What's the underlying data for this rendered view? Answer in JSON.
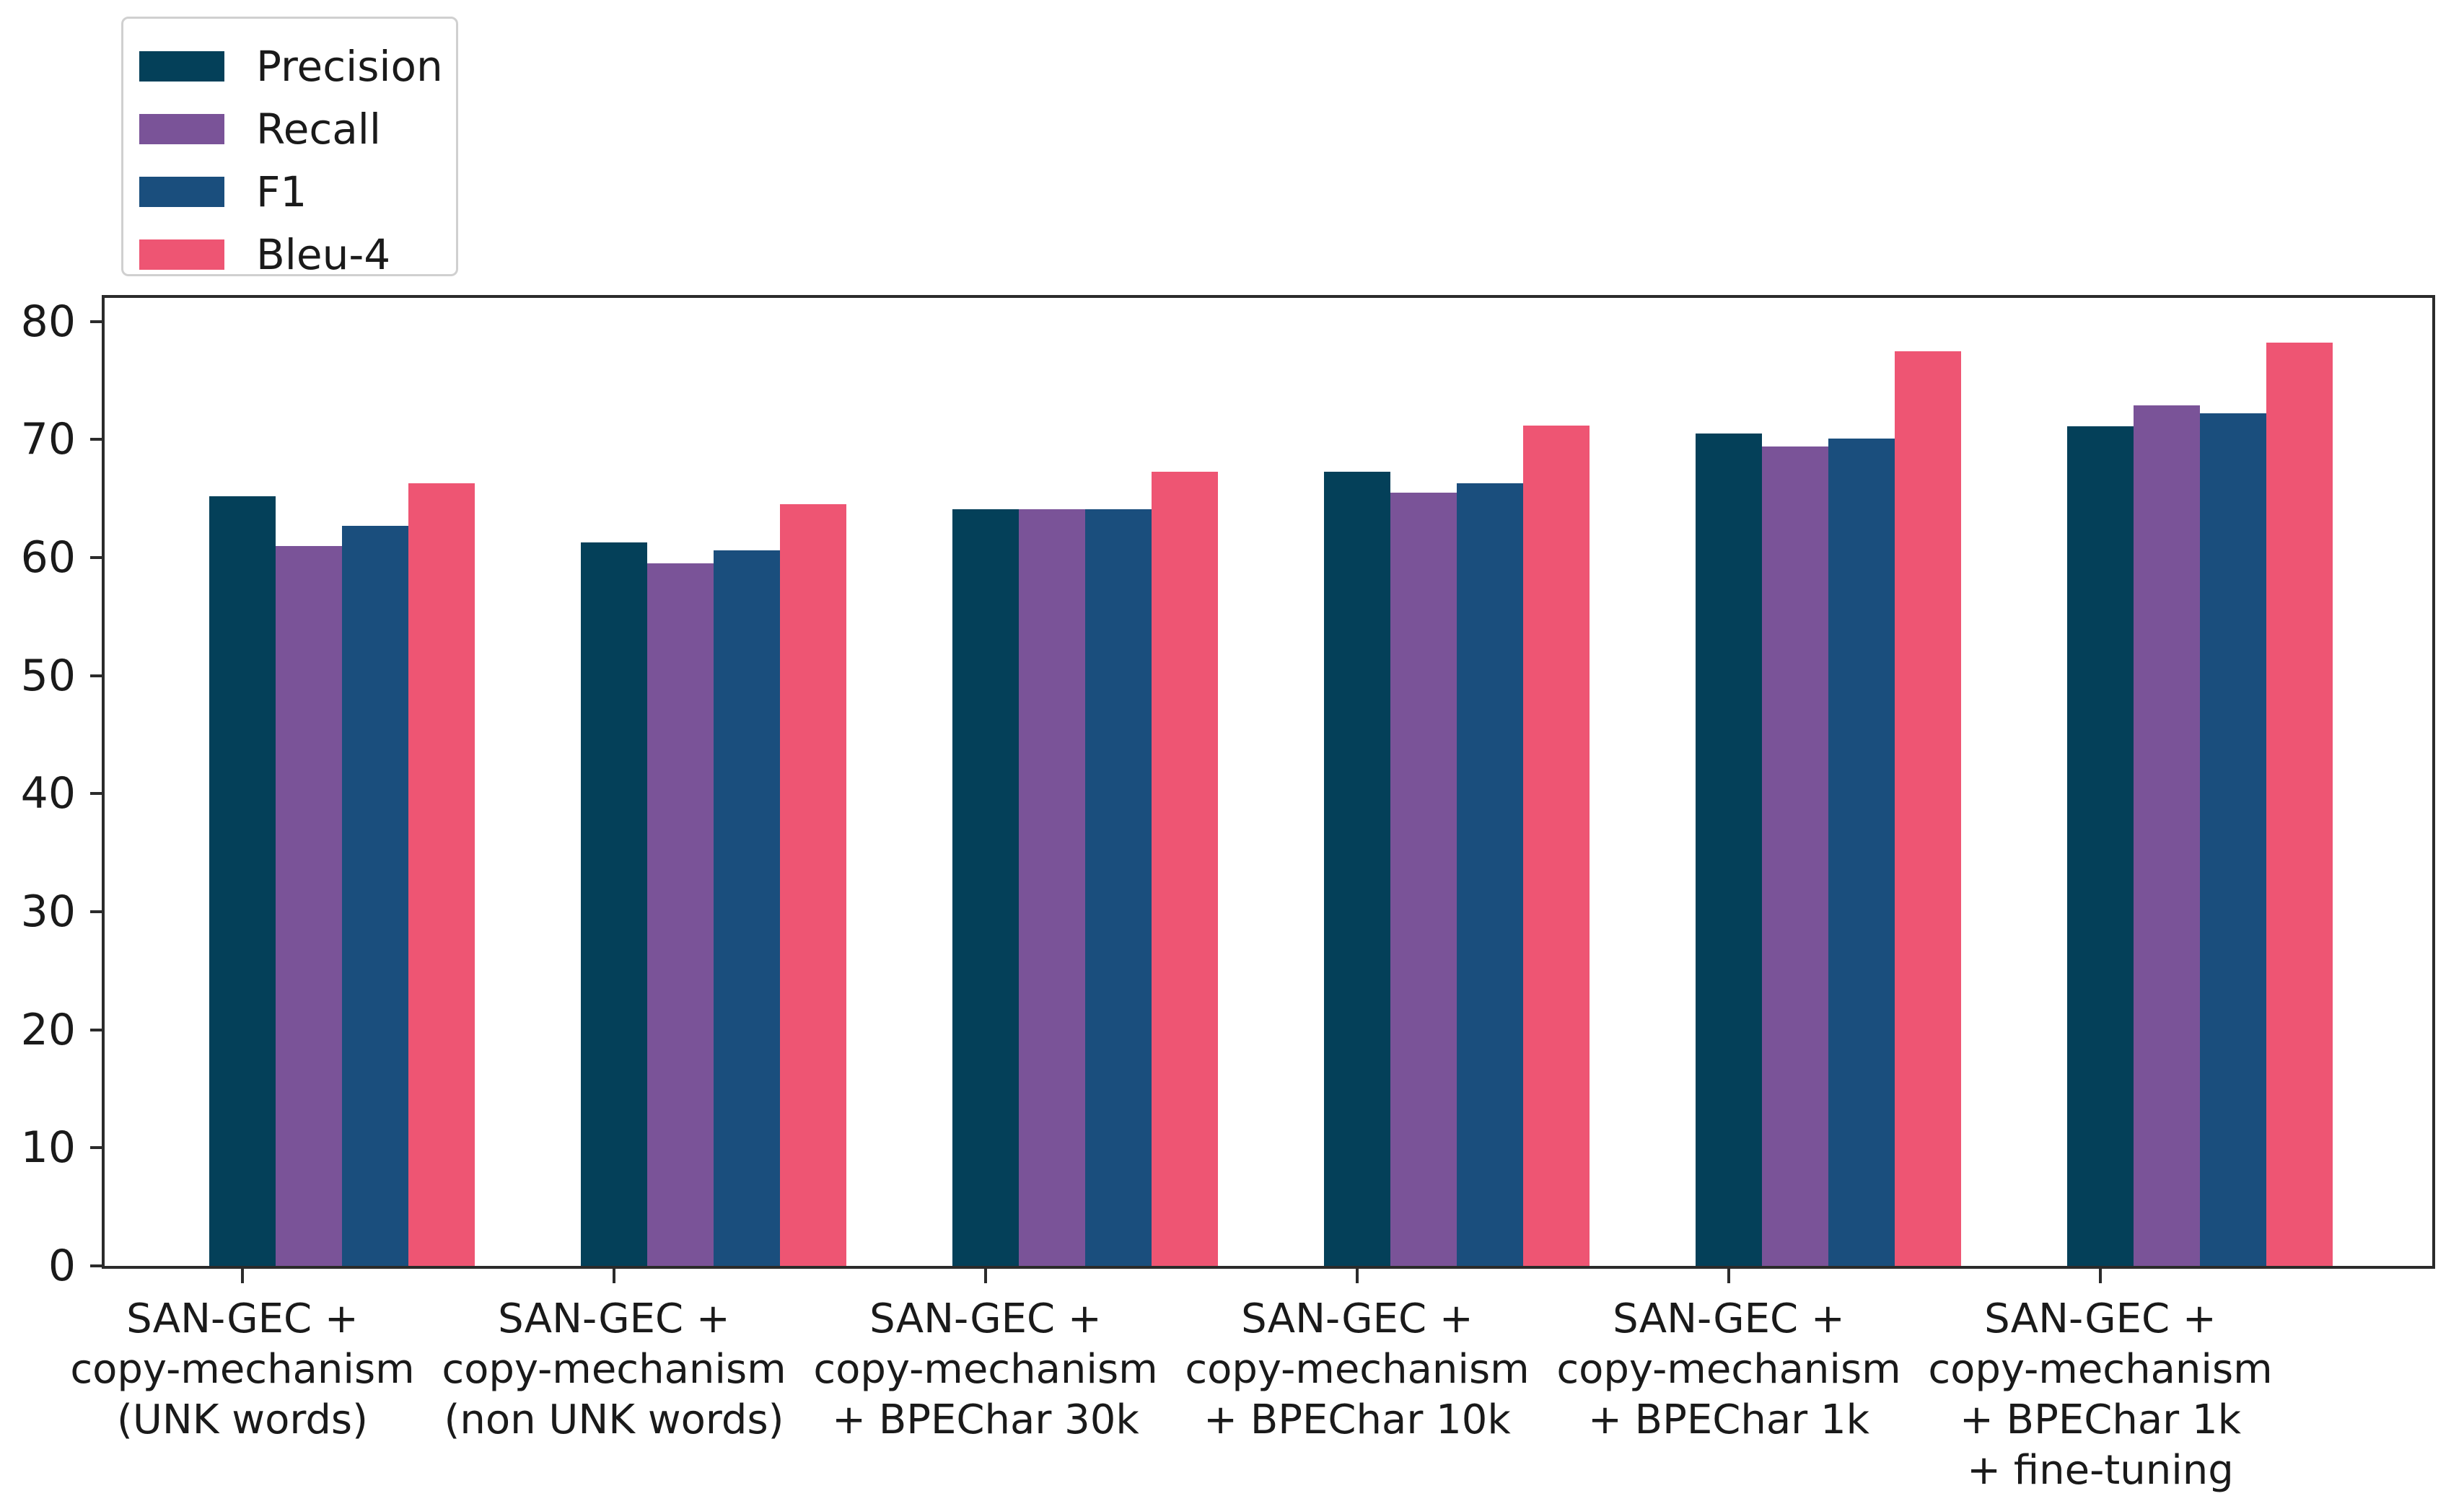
{
  "chart_data": {
    "type": "bar",
    "title": "",
    "categories": [
      [
        "SAN-GEC +",
        "copy-mechanism",
        "(UNK words)"
      ],
      [
        "SAN-GEC +",
        "copy-mechanism",
        "(non UNK words)"
      ],
      [
        "SAN-GEC +",
        "copy-mechanism",
        "+ BPEChar 30k"
      ],
      [
        "SAN-GEC +",
        "copy-mechanism",
        "+ BPEChar 10k"
      ],
      [
        "SAN-GEC +",
        "copy-mechanism",
        "+ BPEChar 1k"
      ],
      [
        "SAN-GEC +",
        "copy-mechanism",
        "+ BPEChar 1k",
        "+ fine-tuning"
      ]
    ],
    "series": [
      {
        "name": "Precision",
        "color": "#044059",
        "values": [
          65.2,
          61.3,
          64.1,
          67.3,
          70.5,
          71.1
        ]
      },
      {
        "name": "Recall",
        "color": "#7a5398",
        "values": [
          61.0,
          59.5,
          64.1,
          65.5,
          69.4,
          72.9
        ]
      },
      {
        "name": "F1",
        "color": "#1a4e7d",
        "values": [
          62.7,
          60.6,
          64.1,
          66.3,
          70.1,
          72.2
        ]
      },
      {
        "name": "Bleu-4",
        "color": "#ee5573",
        "values": [
          66.3,
          64.5,
          67.3,
          71.2,
          77.5,
          78.2
        ]
      }
    ],
    "y_ticks": [
      0,
      10,
      20,
      30,
      40,
      50,
      60,
      70,
      80
    ],
    "ylim": [
      0,
      82
    ],
    "grid": false,
    "legend_position": "upper left outside"
  },
  "colors": {
    "background": "#ffffff",
    "axis": "#2b2b2b",
    "text": "#1a1a1a",
    "legend_border": "#d0d0d0"
  }
}
